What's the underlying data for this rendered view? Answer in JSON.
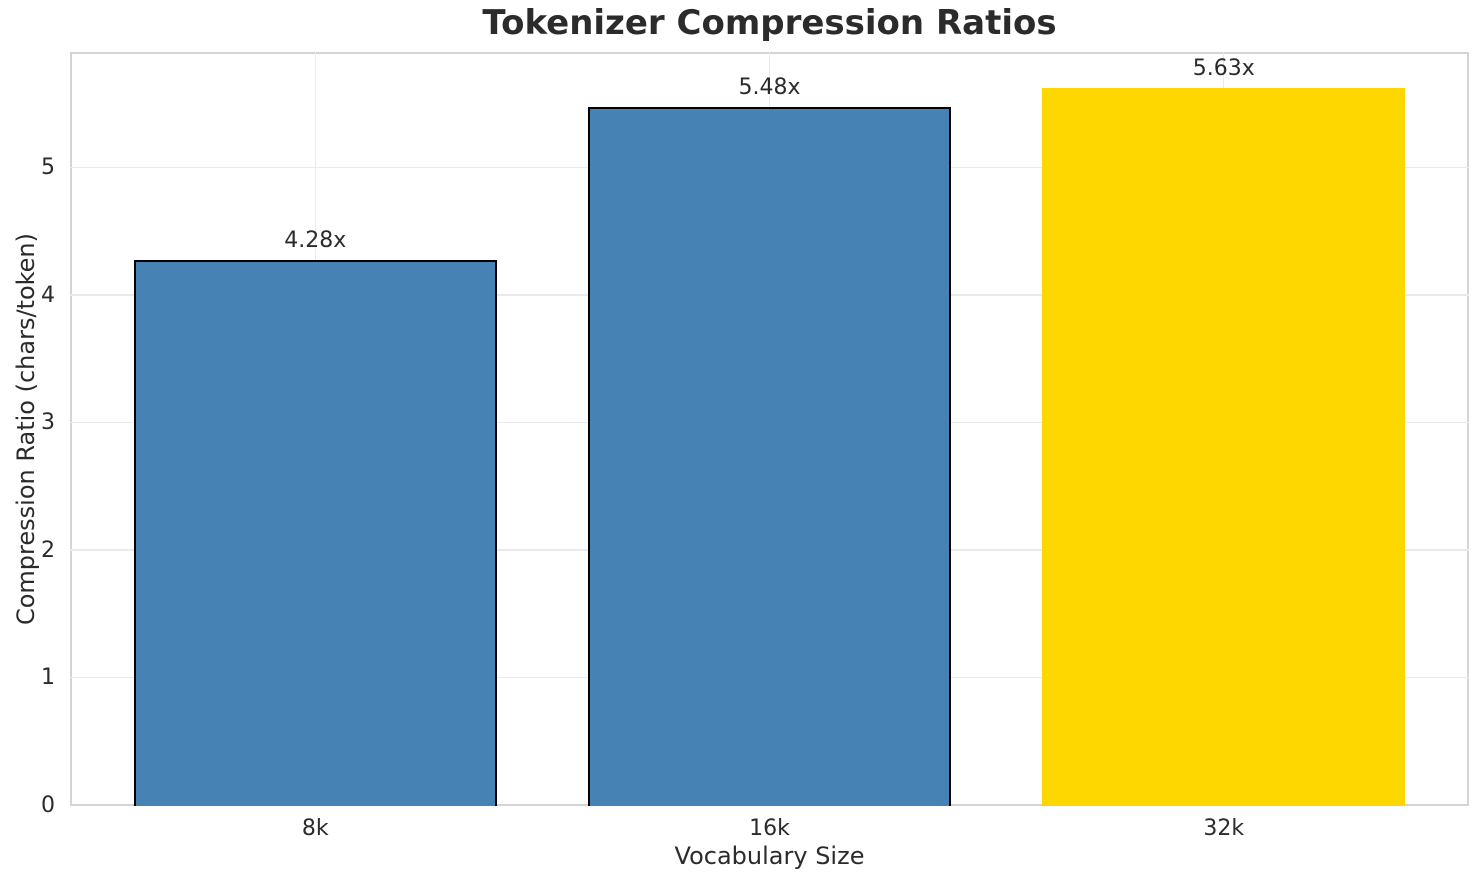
{
  "chart_data": {
    "type": "bar",
    "title": "Tokenizer Compression Ratios",
    "xlabel": "Vocabulary Size",
    "ylabel": "Compression Ratio (chars/token)",
    "categories": [
      "8k",
      "16k",
      "32k"
    ],
    "values": [
      4.28,
      5.48,
      5.63
    ],
    "bar_labels": [
      "4.28x",
      "5.48x",
      "5.63x"
    ],
    "bar_colors": [
      "#4682B4",
      "#4682B4",
      "#FFD700"
    ],
    "bar_edge_colors": [
      "#000000",
      "#000000",
      "none"
    ],
    "ylim": [
      0,
      5.91
    ],
    "yticks": [
      0,
      1,
      2,
      3,
      4,
      5
    ],
    "grid": true,
    "legend_position": "none"
  },
  "colors": {
    "background": "#FFFFFF",
    "grid": "#EAEAEA",
    "spine": "#D4D4D4",
    "text": "#2B2B2B",
    "bar_blue": "#4682B4",
    "bar_gold": "#FFD700",
    "bar_edge": "#000000"
  }
}
